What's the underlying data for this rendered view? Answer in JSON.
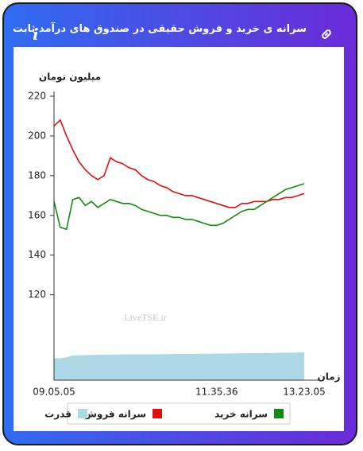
{
  "header": {
    "title": "سرانه ی خرید و فروش حقیقی در صندوق های درآمد ثابت"
  },
  "chart_data": {
    "type": "line",
    "y_label": "میلیون تومان",
    "x_label": "زمان",
    "watermark": "LiveTSE.ir",
    "categories": [
      "09.05.05",
      null,
      null,
      null,
      null,
      null,
      null,
      null,
      null,
      null,
      null,
      null,
      null,
      null,
      null,
      null,
      null,
      null,
      null,
      null,
      null,
      null,
      null,
      null,
      null,
      null,
      "11.35.36",
      null,
      null,
      null,
      null,
      null,
      null,
      null,
      null,
      null,
      null,
      null,
      null,
      null,
      "13.23.05"
    ],
    "ylim": [
      77,
      220
    ],
    "yticks": [
      120,
      140,
      160,
      180,
      200,
      220
    ],
    "series": [
      {
        "name": "سرانه خرید",
        "color": "#138a13",
        "kind": "line",
        "values": [
          167,
          154,
          153,
          168,
          169,
          165,
          167,
          164,
          166,
          168,
          167,
          166,
          166,
          165,
          163,
          162,
          161,
          160,
          160,
          159,
          159,
          158,
          158,
          157,
          156,
          155,
          155,
          156,
          158,
          160,
          162,
          163,
          163,
          165,
          167,
          169,
          171,
          173,
          174,
          175,
          176
        ]
      },
      {
        "name": "سرانه فروش",
        "color": "#e01010",
        "kind": "line",
        "values": [
          205,
          208,
          200,
          193,
          187,
          183,
          180,
          178,
          180,
          189,
          187,
          186,
          184,
          183,
          180,
          178,
          177,
          175,
          174,
          172,
          171,
          170,
          170,
          169,
          168,
          167,
          166,
          165,
          164,
          164,
          166,
          166,
          167,
          167,
          167,
          168,
          168,
          169,
          169,
          170,
          171
        ]
      },
      {
        "name": "قدرت",
        "color": "#add8e6",
        "kind": "area",
        "values": [
          88,
          88,
          88.5,
          89.5,
          89.5,
          89.6,
          89.7,
          89.8,
          89.8,
          89.9,
          89.9,
          90,
          90,
          90,
          90,
          90,
          90,
          90.1,
          90.1,
          90.1,
          90.2,
          90.2,
          90.2,
          90.3,
          90.3,
          90.3,
          90.4,
          90.4,
          90.4,
          90.5,
          90.5,
          90.6,
          90.6,
          90.6,
          90.7,
          90.7,
          90.8,
          90.8,
          90.8,
          90.9,
          91
        ]
      }
    ]
  }
}
